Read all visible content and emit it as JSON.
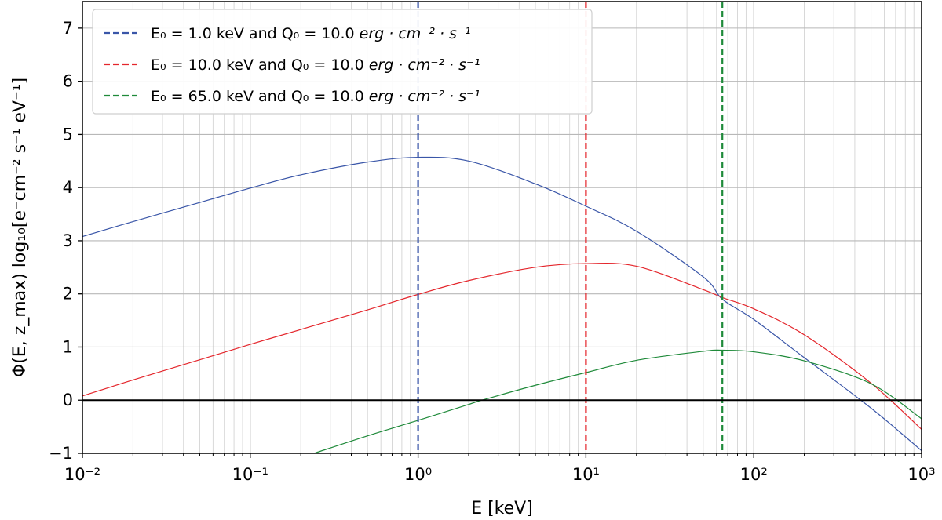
{
  "chart_data": {
    "type": "line",
    "xlabel": "E [keV]",
    "ylabel": "Φ(E, z_max) log₁₀[e⁻cm⁻² s⁻¹ eV⁻¹]",
    "xscale": "log",
    "xlim": [
      0.01,
      1000
    ],
    "ylim": [
      -1,
      7.5
    ],
    "grid": "major and minor",
    "legend_position": "top-left",
    "x_tick_labels": [
      "10⁻²",
      "10⁻¹",
      "10⁰",
      "10¹",
      "10²",
      "10³"
    ],
    "y_tick_labels": [
      "−1",
      "0",
      "1",
      "2",
      "3",
      "4",
      "5",
      "6",
      "7"
    ],
    "x_ticks": [
      0.01,
      0.1,
      1,
      10,
      100,
      1000
    ],
    "y_ticks": [
      -1,
      0,
      1,
      2,
      3,
      4,
      5,
      6,
      7
    ],
    "hline": {
      "y": 0,
      "color": "#000000"
    },
    "series": [
      {
        "name": "E₀ = 1.0 keV and Q₀ = 10.0 erg·cm⁻²·s⁻¹",
        "legend_parts": {
          "e0": "E₀ =  1.0 keV and ",
          "q0": "Q₀ = 10.0 ",
          "unit": "erg · cm⁻² · s⁻¹"
        },
        "color": "#3a56a8",
        "vline_x": 1.0,
        "x": [
          0.01,
          0.02,
          0.05,
          0.1,
          0.2,
          0.5,
          1,
          2,
          5,
          10,
          20,
          50,
          65,
          100,
          200,
          500,
          1000
        ],
        "y": [
          3.08,
          3.36,
          3.72,
          3.99,
          4.24,
          4.48,
          4.57,
          4.5,
          4.07,
          3.65,
          3.18,
          2.32,
          1.9,
          1.52,
          0.8,
          -0.15,
          -0.95
        ]
      },
      {
        "name": "E₀ = 10.0 keV and Q₀ = 10.0 erg·cm⁻²·s⁻¹",
        "legend_parts": {
          "e0": "E₀ = 10.0 keV and ",
          "q0": "Q₀ = 10.0 ",
          "unit": "erg · cm⁻² · s⁻¹"
        },
        "color": "#e4262c",
        "vline_x": 10.0,
        "x": [
          0.01,
          0.02,
          0.05,
          0.1,
          0.2,
          0.5,
          1,
          2,
          5,
          10,
          20,
          50,
          65,
          100,
          200,
          500,
          1000
        ],
        "y": [
          0.08,
          0.38,
          0.76,
          1.05,
          1.33,
          1.7,
          1.99,
          2.25,
          2.5,
          2.57,
          2.52,
          2.08,
          1.93,
          1.72,
          1.23,
          0.32,
          -0.55
        ]
      },
      {
        "name": "E₀ = 65.0 keV and Q₀ = 10.0 erg·cm⁻²·s⁻¹",
        "legend_parts": {
          "e0": "E₀ = 65.0 keV and ",
          "q0": "Q₀ = 10.0 ",
          "unit": "erg · cm⁻² · s⁻¹"
        },
        "color": "#1f8a3a",
        "vline_x": 65.0,
        "x": [
          0.24,
          0.5,
          1,
          2,
          2.4,
          5,
          10,
          20,
          50,
          65,
          100,
          200,
          500,
          1000
        ],
        "y": [
          -1.0,
          -0.67,
          -0.38,
          -0.08,
          0.0,
          0.28,
          0.52,
          0.75,
          0.92,
          0.94,
          0.91,
          0.74,
          0.31,
          -0.35
        ]
      }
    ]
  }
}
